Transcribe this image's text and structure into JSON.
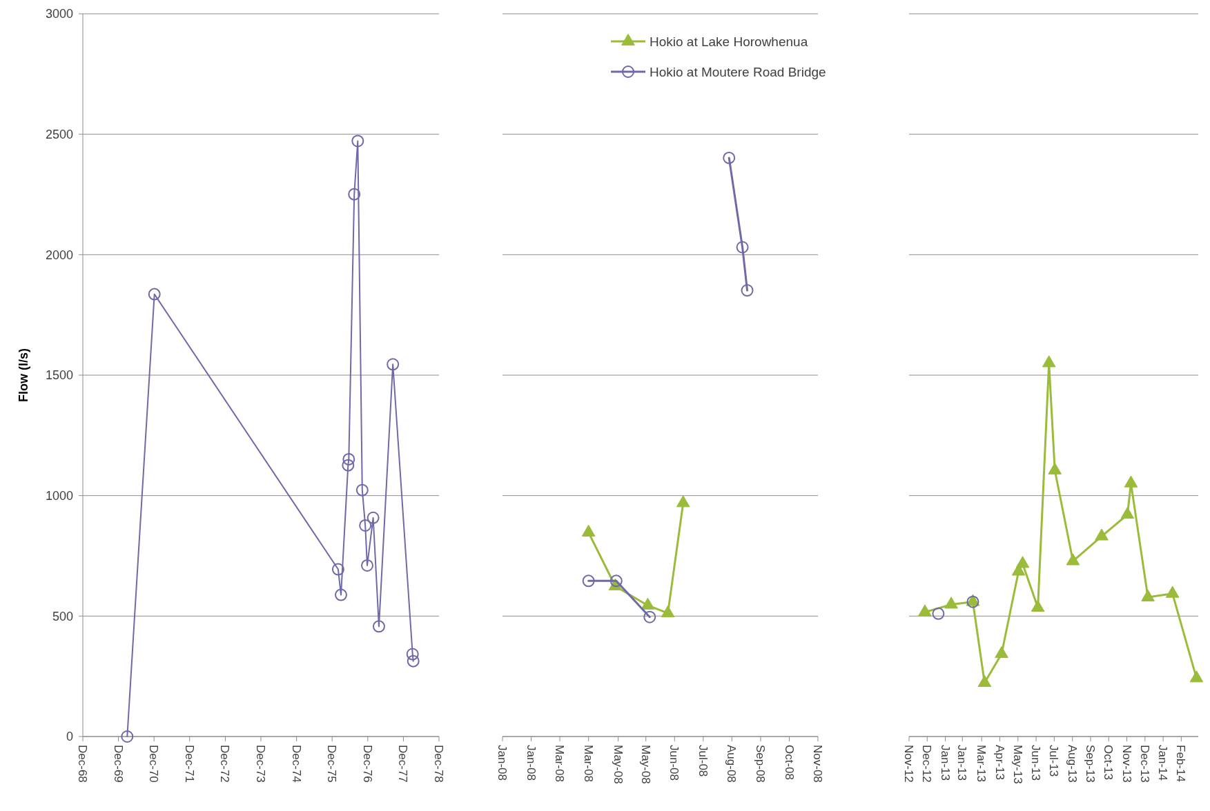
{
  "chart_data": [
    {
      "type": "line",
      "ylabel": "Flow (l/s)",
      "grid": "y",
      "xlim": [
        "1968-12-01",
        "1978-12-01"
      ],
      "xticks": [
        {
          "value": "1968-12-01",
          "label": "Dec-68"
        },
        {
          "value": "1969-12-01",
          "label": "Dec-69"
        },
        {
          "value": "1970-12-01",
          "label": "Dec-70"
        },
        {
          "value": "1971-12-01",
          "label": "Dec-71"
        },
        {
          "value": "1972-12-01",
          "label": "Dec-72"
        },
        {
          "value": "1973-12-01",
          "label": "Dec-73"
        },
        {
          "value": "1974-12-01",
          "label": "Dec-74"
        },
        {
          "value": "1975-12-01",
          "label": "Dec-75"
        },
        {
          "value": "1976-12-01",
          "label": "Dec-76"
        },
        {
          "value": "1977-12-01",
          "label": "Dec-77"
        },
        {
          "value": "1978-12-01",
          "label": "Dec-78"
        }
      ],
      "ylim": [
        0,
        3000
      ],
      "yticks": [
        0,
        500,
        1000,
        1500,
        2000,
        2500,
        3000
      ],
      "series": [
        {
          "color": "#6e6aa8",
          "marker": "circle",
          "x": [
            "1970-03-01",
            "1970-12-05",
            "1976-02-01",
            "1976-03-01",
            "1976-05-13",
            "1976-05-20",
            "1976-07-15",
            "1976-08-20",
            "1976-10-05",
            "1976-11-05",
            "1976-11-25",
            "1977-01-25",
            "1977-03-25",
            "1977-08-15",
            "1978-03-05",
            "1978-03-12"
          ],
          "values": [
            0,
            1836,
            694,
            588,
            1126,
            1151,
            2251,
            2472,
            1023,
            876,
            710,
            908,
            457,
            1545,
            342,
            313
          ]
        }
      ]
    },
    {
      "type": "line",
      "grid": "y",
      "tick_labels": "x",
      "legend": "top right",
      "xlim": [
        "2008-01-01",
        "2008-11-26"
      ],
      "xticks": [
        {
          "value": "2008-01-01",
          "label": "Jan-08"
        },
        {
          "value": "2008-01-31",
          "label": "Jan-08"
        },
        {
          "value": "2008-03-01",
          "label": "Mar-08"
        },
        {
          "value": "2008-03-31",
          "label": "Mar-08"
        },
        {
          "value": "2008-05-01",
          "label": "May-08"
        },
        {
          "value": "2008-05-30",
          "label": "May-08"
        },
        {
          "value": "2008-06-29",
          "label": "Jun-08"
        },
        {
          "value": "2008-07-29",
          "label": "Jul-08"
        },
        {
          "value": "2008-08-28",
          "label": "Aug-08"
        },
        {
          "value": "2008-09-27",
          "label": "Sep-08"
        },
        {
          "value": "2008-10-27",
          "label": "Oct-08"
        },
        {
          "value": "2008-11-26",
          "label": "Nov-08"
        }
      ],
      "ylim": [
        0,
        3000
      ],
      "yticks": [
        0,
        500,
        1000,
        1500,
        2000,
        2500,
        3000
      ],
      "series": [
        {
          "name": "Hokio at Lake Horowhenua",
          "color": "#9bbb3b",
          "marker": "triangle",
          "x": [
            "2008-03-31",
            "2008-04-28",
            "2008-06-01",
            "2008-06-22",
            "2008-07-08"
          ],
          "values": [
            847,
            624,
            544,
            512,
            969
          ]
        },
        {
          "name": "Hokio at Moutere Road Bridge",
          "color": "#6e6aa8",
          "marker": "circle",
          "x": [
            "2008-03-31",
            "2008-04-29",
            "2008-06-03",
            "2008-07-15",
            "2008-08-25",
            "2008-09-08",
            "2008-09-13"
          ],
          "values": [
            646,
            646,
            496,
            null,
            2402,
            2031,
            1852
          ]
        }
      ]
    },
    {
      "type": "line",
      "grid": "y",
      "tick_labels": "x",
      "xlim": [
        "2012-11-01",
        "2014-03-10"
      ],
      "xticks": [
        {
          "value": "2012-11-01",
          "label": "Nov-12"
        },
        {
          "value": "2012-12-02",
          "label": "Dec-12"
        },
        {
          "value": "2013-01-02",
          "label": "Jan-13"
        },
        {
          "value": "2013-01-31",
          "label": "Jan-13"
        },
        {
          "value": "2013-03-05",
          "label": "Mar-13"
        },
        {
          "value": "2013-04-05",
          "label": "Apr-13"
        },
        {
          "value": "2013-05-06",
          "label": "May-13"
        },
        {
          "value": "2013-06-06",
          "label": "Jun-13"
        },
        {
          "value": "2013-07-07",
          "label": "Jul-13"
        },
        {
          "value": "2013-08-07",
          "label": "Aug-13"
        },
        {
          "value": "2013-09-07",
          "label": "Sep-13"
        },
        {
          "value": "2013-10-08",
          "label": "Oct-13"
        },
        {
          "value": "2013-11-08",
          "label": "Nov-13"
        },
        {
          "value": "2013-12-09",
          "label": "Dec-13"
        },
        {
          "value": "2014-01-09",
          "label": "Jan-14"
        },
        {
          "value": "2014-02-09",
          "label": "Feb-14"
        }
      ],
      "ylim": [
        0,
        3000
      ],
      "yticks": [
        0,
        500,
        1000,
        1500,
        2000,
        2500,
        3000
      ],
      "series": [
        {
          "color": "#9bbb3b",
          "marker": "triangle",
          "x": [
            "2012-11-28",
            "2013-01-12",
            "2013-02-18",
            "2013-03-10",
            "2013-04-08",
            "2013-05-07",
            "2013-05-14",
            "2013-06-09",
            "2013-06-28",
            "2013-07-08",
            "2013-08-08",
            "2013-09-26",
            "2013-11-09",
            "2013-11-15",
            "2013-12-14",
            "2014-01-25",
            "2014-03-07"
          ],
          "values": [
            516,
            548,
            559,
            223,
            343,
            685,
            717,
            535,
            1550,
            1105,
            728,
            831,
            921,
            1051,
            578,
            593,
            242
          ]
        },
        {
          "type": "scatter",
          "color": "#6e6aa8",
          "marker": "circle",
          "x": [
            "2012-12-21",
            "2013-02-18"
          ],
          "values": [
            510,
            559
          ]
        }
      ]
    }
  ]
}
